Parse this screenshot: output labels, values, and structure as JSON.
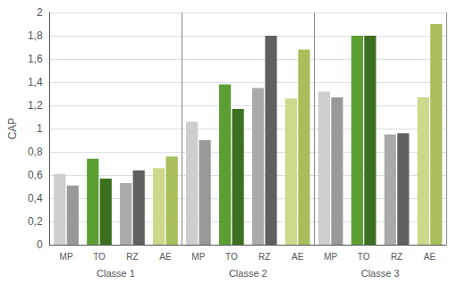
{
  "chart_data": {
    "type": "bar",
    "ylabel": "CAP",
    "categories": [
      "MP",
      "TO",
      "RZ",
      "AE",
      "MP",
      "TO",
      "RZ",
      "AE",
      "MP",
      "TO",
      "RZ",
      "AE"
    ],
    "groups": [
      "Classe 1",
      "Classe 2",
      "Classe 3"
    ],
    "series": [
      {
        "colors": [
          "#cecece",
          "#5c9e32",
          "#aaaaaa",
          "#ccd88a",
          "#cecece",
          "#5c9e32",
          "#aaaaaa",
          "#ccd88a",
          "#cecece",
          "#5c9e32",
          "#aaaaaa",
          "#ccd88a"
        ],
        "values": [
          0.61,
          0.74,
          0.53,
          0.66,
          1.06,
          1.38,
          1.35,
          1.26,
          1.32,
          1.8,
          0.95,
          1.27
        ]
      },
      {
        "colors": [
          "#999999",
          "#3a7020",
          "#606060",
          "#a8be5a",
          "#999999",
          "#3a7020",
          "#606060",
          "#a8be5a",
          "#999999",
          "#3a7020",
          "#606060",
          "#a8be5a"
        ],
        "values": [
          0.51,
          0.57,
          0.64,
          0.76,
          0.9,
          1.17,
          1.8,
          1.68,
          1.27,
          1.8,
          0.96,
          1.9
        ]
      }
    ],
    "ylim": [
      0,
      2.0
    ],
    "yticks": [
      0,
      {
        "value": 0.2,
        "label": "0,2"
      },
      {
        "value": 0.4,
        "label": "0,4"
      },
      {
        "value": 0.6,
        "label": "0,6"
      },
      {
        "value": 0.8,
        "label": "0,8"
      },
      1,
      {
        "value": 1.2,
        "label": "1,2"
      },
      {
        "value": 1.4,
        "label": "1,4"
      },
      {
        "value": 1.6,
        "label": "1,6"
      },
      {
        "value": 1.8,
        "label": "1,8"
      },
      2
    ],
    "grid": true
  }
}
